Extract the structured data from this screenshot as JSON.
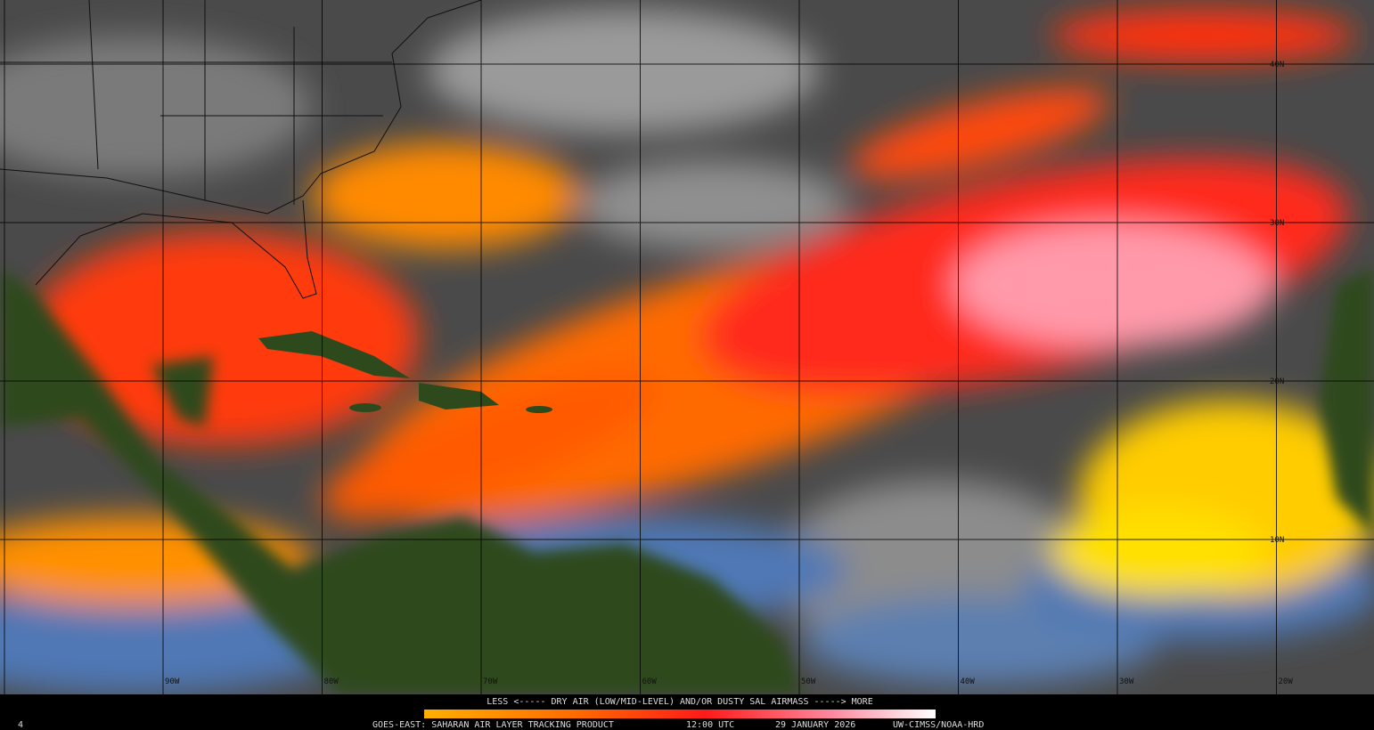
{
  "map": {
    "lat_labels": [
      "40N",
      "30N",
      "20N",
      "10N"
    ],
    "lon_labels": [
      "90W",
      "80W",
      "70W",
      "60W",
      "50W",
      "40W",
      "30W",
      "20W"
    ],
    "legend": "LESS <----- DRY AIR (LOW/MID-LEVEL) AND/OR DUSTY SAL AIRMASS -----> MORE"
  },
  "footer": {
    "frame": "4",
    "product": "GOES-EAST: SAHARAN AIR LAYER TRACKING PRODUCT",
    "time": "12:00 UTC",
    "date": "29 JANUARY 2026",
    "credit": "UW-CIMSS/NOAA-HRD"
  }
}
